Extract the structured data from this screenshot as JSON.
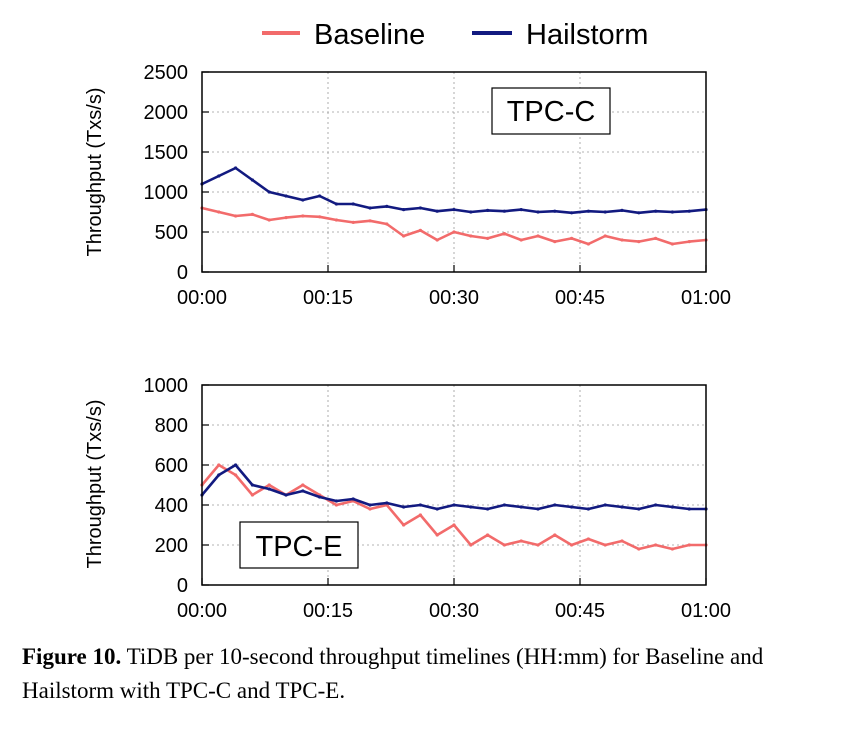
{
  "legend": {
    "items": [
      {
        "label": "Baseline",
        "color": "#f26b6b"
      },
      {
        "label": "Hailstorm",
        "color": "#121a80"
      }
    ]
  },
  "caption": {
    "label": "Figure 10.",
    "text": "TiDB per 10-second throughput timelines (HH:mm) for Baseline and Hailstorm with TPC-C and TPC-E."
  },
  "chart_data": [
    {
      "type": "line",
      "title": "TPC-C",
      "ylabel": "Throughput (Txs/s)",
      "xlabel": "",
      "xlim": [
        "00:00",
        "01:00"
      ],
      "ylim": [
        0,
        2500
      ],
      "xticks": [
        "00:00",
        "00:15",
        "00:30",
        "00:45",
        "01:00"
      ],
      "yticks": [
        0,
        500,
        1000,
        1500,
        2000,
        2500
      ],
      "grid": true,
      "legend": "top-center",
      "x": [
        "00:00",
        "00:02",
        "00:04",
        "00:06",
        "00:08",
        "00:10",
        "00:12",
        "00:14",
        "00:16",
        "00:18",
        "00:20",
        "00:22",
        "00:24",
        "00:26",
        "00:28",
        "00:30",
        "00:32",
        "00:34",
        "00:36",
        "00:38",
        "00:40",
        "00:42",
        "00:44",
        "00:46",
        "00:48",
        "00:50",
        "00:52",
        "00:54",
        "00:56",
        "00:58",
        "01:00"
      ],
      "series": [
        {
          "name": "Baseline",
          "color": "#f26b6b",
          "values": [
            800,
            750,
            700,
            720,
            650,
            680,
            700,
            690,
            650,
            620,
            640,
            600,
            450,
            520,
            400,
            500,
            450,
            420,
            480,
            400,
            450,
            380,
            420,
            350,
            450,
            400,
            380,
            420,
            350,
            380,
            400
          ]
        },
        {
          "name": "Hailstorm",
          "color": "#121a80",
          "values": [
            1100,
            1200,
            1300,
            1150,
            1000,
            950,
            900,
            950,
            850,
            850,
            800,
            820,
            780,
            800,
            760,
            780,
            750,
            770,
            760,
            780,
            750,
            760,
            740,
            760,
            750,
            770,
            740,
            760,
            750,
            760,
            780
          ]
        }
      ]
    },
    {
      "type": "line",
      "title": "TPC-E",
      "ylabel": "Throughput (Txs/s)",
      "xlabel": "",
      "xlim": [
        "00:00",
        "01:00"
      ],
      "ylim": [
        0,
        1000
      ],
      "xticks": [
        "00:00",
        "00:15",
        "00:30",
        "00:45",
        "01:00"
      ],
      "yticks": [
        0,
        200,
        400,
        600,
        800,
        1000
      ],
      "grid": true,
      "x": [
        "00:00",
        "00:02",
        "00:04",
        "00:06",
        "00:08",
        "00:10",
        "00:12",
        "00:14",
        "00:16",
        "00:18",
        "00:20",
        "00:22",
        "00:24",
        "00:26",
        "00:28",
        "00:30",
        "00:32",
        "00:34",
        "00:36",
        "00:38",
        "00:40",
        "00:42",
        "00:44",
        "00:46",
        "00:48",
        "00:50",
        "00:52",
        "00:54",
        "00:56",
        "00:58",
        "01:00"
      ],
      "series": [
        {
          "name": "Baseline",
          "color": "#f26b6b",
          "values": [
            500,
            600,
            550,
            450,
            500,
            450,
            500,
            450,
            400,
            420,
            380,
            400,
            300,
            350,
            250,
            300,
            200,
            250,
            200,
            220,
            200,
            250,
            200,
            230,
            200,
            220,
            180,
            200,
            180,
            200,
            200
          ]
        },
        {
          "name": "Hailstorm",
          "color": "#121a80",
          "values": [
            450,
            550,
            600,
            500,
            480,
            450,
            470,
            440,
            420,
            430,
            400,
            410,
            390,
            400,
            380,
            400,
            390,
            380,
            400,
            390,
            380,
            400,
            390,
            380,
            400,
            390,
            380,
            400,
            390,
            380,
            380
          ]
        }
      ]
    }
  ]
}
